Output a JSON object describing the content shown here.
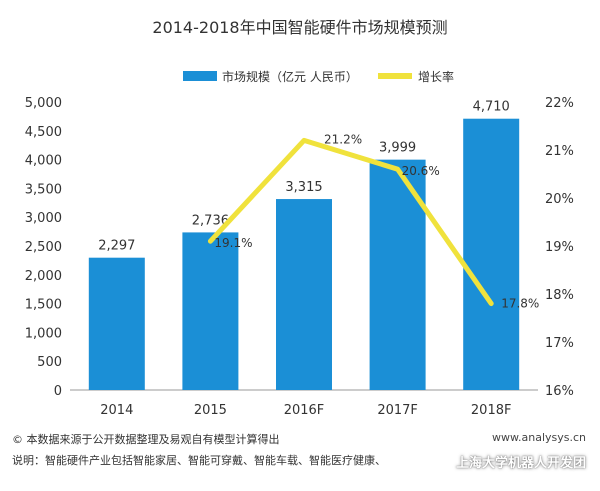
{
  "chart_data": {
    "type": "bar",
    "title": "2014-2018年中国智能硬件市场规模预测",
    "categories": [
      "2014",
      "2015",
      "2016F",
      "2017F",
      "2018F"
    ],
    "series": [
      {
        "name": "市场规模（亿元 人民币）",
        "type": "bar",
        "axis": "left",
        "values": [
          2297,
          2736,
          3315,
          3999,
          4710
        ],
        "labels": [
          "2,297",
          "2,736",
          "3,315",
          "3,999",
          "4,710"
        ]
      },
      {
        "name": "增长率",
        "type": "line",
        "axis": "right",
        "values": [
          null,
          19.1,
          21.2,
          20.6,
          17.8
        ],
        "labels": [
          "",
          "19.1%",
          "21.2%",
          "20.6%",
          "17.8%"
        ]
      }
    ],
    "ylim_left": [
      0,
      5000
    ],
    "yticks_left": [
      "0",
      "500",
      "1,000",
      "1,500",
      "2,000",
      "2,500",
      "3,000",
      "3,500",
      "4,000",
      "4,500",
      "5,000"
    ],
    "ylim_right": [
      16,
      22
    ],
    "yticks_right": [
      "16%",
      "17%",
      "18%",
      "19%",
      "20%",
      "21%",
      "22%"
    ],
    "legend_position": "top",
    "grid": false,
    "colors": {
      "bar": "#1b8fd6",
      "line": "#f0e23c"
    }
  },
  "footer": {
    "source": "© 本数据来源于公开数据整理及易观自有模型计算得出",
    "url": "www.analysys.cn",
    "note": "说明：智能硬件产业包括智能家居、智能可穿戴、智能车载、智能医疗健康、",
    "watermark": "上海大学机器人开发团"
  }
}
